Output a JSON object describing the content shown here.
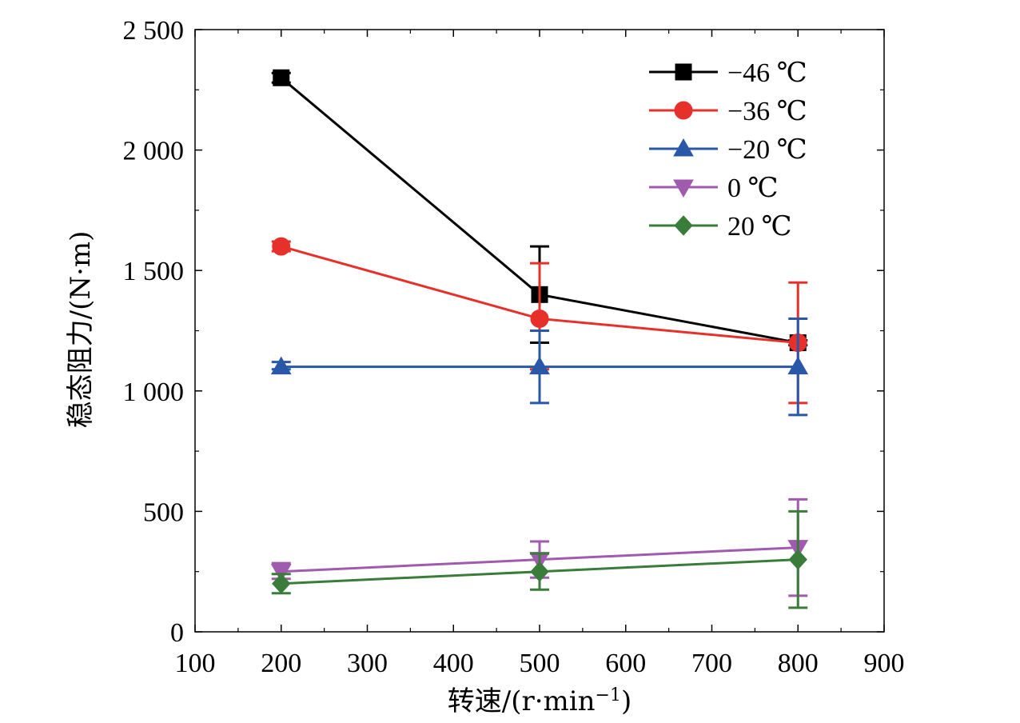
{
  "chart_data": {
    "type": "line",
    "title": "",
    "xlabel": "转速/(r·min",
    "xlabel_sup": "−1",
    "xlabel_close": ")",
    "ylabel": "稳态阻力/(N·m)",
    "xlim": [
      100,
      900
    ],
    "ylim": [
      0,
      2500
    ],
    "xticks": [
      100,
      200,
      300,
      400,
      500,
      600,
      700,
      800,
      900
    ],
    "xtick_labels": [
      "100",
      "200",
      "300",
      "400",
      "500",
      "600",
      "700",
      "800",
      "900"
    ],
    "yticks": [
      0,
      500,
      1000,
      1500,
      2000,
      2500
    ],
    "ytick_labels": [
      "0",
      "500",
      "1 000",
      "1 500",
      "2 000",
      "2 500"
    ],
    "grid": false,
    "legend_position": "top-right",
    "x": [
      200,
      500,
      800
    ],
    "series": [
      {
        "name": "−46 ℃",
        "color": "#000000",
        "marker": "square",
        "values": [
          2300,
          1400,
          1200
        ],
        "err_low": [
          2280,
          1200,
          1190
        ],
        "err_high": [
          2320,
          1600,
          1210
        ]
      },
      {
        "name": "−36 ℃",
        "color": "#e8302a",
        "marker": "circle",
        "values": [
          1600,
          1300,
          1200
        ],
        "err_low": [
          1580,
          1090,
          950
        ],
        "err_high": [
          1620,
          1530,
          1450
        ]
      },
      {
        "name": "−20 ℃",
        "color": "#2a58a8",
        "marker": "triangle-up",
        "values": [
          1100,
          1100,
          1100
        ],
        "err_low": [
          1090,
          950,
          900
        ],
        "err_high": [
          1120,
          1250,
          1300
        ]
      },
      {
        "name": "0 ℃",
        "color": "#a05aae",
        "marker": "triangle-down",
        "values": [
          250,
          300,
          350
        ],
        "err_low": [
          220,
          225,
          150
        ],
        "err_high": [
          285,
          375,
          550
        ]
      },
      {
        "name": "20 ℃",
        "color": "#3a7d3a",
        "marker": "diamond",
        "values": [
          200,
          250,
          300
        ],
        "err_low": [
          160,
          175,
          100
        ],
        "err_high": [
          240,
          325,
          500
        ]
      }
    ]
  }
}
